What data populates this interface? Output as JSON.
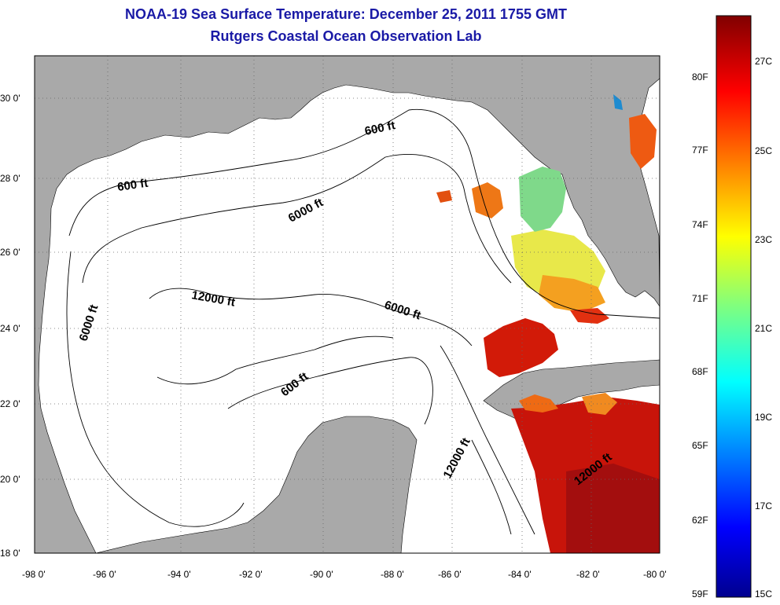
{
  "title": "NOAA-19 Sea Surface Temperature:  December 25, 2011 1755 GMT",
  "subtitle": "Rutgers Coastal Ocean Observation Lab",
  "axes": {
    "lon_ticks": [
      "-98 0'",
      "-96 0'",
      "-94 0'",
      "-92 0'",
      "-90 0'",
      "-88 0'",
      "-86 0'",
      "-84 0'",
      "-82 0'",
      "-80 0'"
    ],
    "lat_ticks": [
      "30 0'",
      "28 0'",
      "26 0'",
      "24 0'",
      "22 0'",
      "20 0'",
      "18 0'"
    ],
    "lon_range": [
      -98,
      -80
    ],
    "lat_range": [
      18,
      31
    ]
  },
  "contours": [
    {
      "label": "600 ft"
    },
    {
      "label": "600 ft"
    },
    {
      "label": "6000 ft"
    },
    {
      "label": "6000 ft"
    },
    {
      "label": "6000 ft"
    },
    {
      "label": "12000 ft"
    },
    {
      "label": "600 ft"
    },
    {
      "label": "12000 ft"
    },
    {
      "label": "12000 ft"
    }
  ],
  "colorbar": {
    "fahrenheit": [
      "80F",
      "77F",
      "74F",
      "71F",
      "68F",
      "65F",
      "62F",
      "59F"
    ],
    "celsius": [
      "27C",
      "25C",
      "23C",
      "21C",
      "19C",
      "17C",
      "15C"
    ]
  },
  "colors": {
    "land": "#a9a9a9",
    "title": "#1a1aa6"
  }
}
